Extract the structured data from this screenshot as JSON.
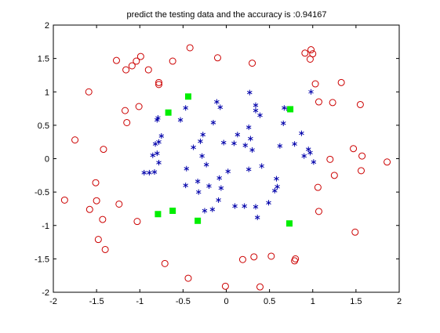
{
  "chart_data": {
    "type": "scatter",
    "title": "predict the testing data and the accuracy is :0.94167",
    "xlabel": "",
    "ylabel": "",
    "xlim": [
      -2,
      2
    ],
    "ylim": [
      -2,
      2
    ],
    "xticks": [
      -2,
      -1.5,
      -1,
      -0.5,
      0,
      0.5,
      1,
      1.5,
      2
    ],
    "yticks": [
      -2,
      -1.5,
      -1,
      -0.5,
      0,
      0.5,
      1,
      1.5,
      2
    ],
    "xtick_labels": [
      "-2",
      "-1.5",
      "-1",
      "-0.5",
      "0",
      "0.5",
      "1",
      "1.5",
      "2"
    ],
    "ytick_labels": [
      "-2",
      "-1.5",
      "-1",
      "-0.5",
      "0",
      "0.5",
      "1",
      "1.5",
      "2"
    ],
    "grid": false,
    "legend": "none",
    "series": [
      {
        "marker": "circle-open",
        "color": "#cc0000",
        "points": [
          [
            -1.87,
            -0.62
          ],
          [
            -1.75,
            0.28
          ],
          [
            -1.59,
            1.0
          ],
          [
            -1.58,
            -0.76
          ],
          [
            -1.51,
            -0.36
          ],
          [
            -1.5,
            -0.63
          ],
          [
            -1.48,
            -1.21
          ],
          [
            -1.43,
            -0.91
          ],
          [
            -1.42,
            0.14
          ],
          [
            -1.4,
            -1.36
          ],
          [
            -1.27,
            1.47
          ],
          [
            -1.24,
            -0.68
          ],
          [
            -1.17,
            0.72
          ],
          [
            -1.16,
            1.33
          ],
          [
            -1.15,
            0.54
          ],
          [
            -1.09,
            1.39
          ],
          [
            -1.04,
            1.46
          ],
          [
            -1.03,
            -0.94
          ],
          [
            -1.01,
            0.78
          ],
          [
            -0.99,
            1.53
          ],
          [
            -0.9,
            1.33
          ],
          [
            -0.78,
            1.14
          ],
          [
            -0.78,
            1.11
          ],
          [
            -0.71,
            -1.57
          ],
          [
            -0.62,
            1.46
          ],
          [
            -0.44,
            -1.79
          ],
          [
            -0.42,
            1.66
          ],
          [
            -0.1,
            1.51
          ],
          [
            -0.01,
            -1.91
          ],
          [
            0.19,
            -1.51
          ],
          [
            0.3,
            1.43
          ],
          [
            0.32,
            -1.47
          ],
          [
            0.39,
            -1.92
          ],
          [
            0.52,
            -1.46
          ],
          [
            0.79,
            -1.53
          ],
          [
            0.8,
            -1.5
          ],
          [
            0.91,
            1.58
          ],
          [
            0.97,
            1.49
          ],
          [
            0.98,
            1.63
          ],
          [
            1.0,
            1.57
          ],
          [
            1.03,
            1.12
          ],
          [
            1.06,
            -0.43
          ],
          [
            1.07,
            -0.79
          ],
          [
            1.07,
            0.85
          ],
          [
            1.2,
            -0.01
          ],
          [
            1.23,
            0.84
          ],
          [
            1.25,
            -0.25
          ],
          [
            1.33,
            1.14
          ],
          [
            1.47,
            0.15
          ],
          [
            1.49,
            -1.1
          ],
          [
            1.55,
            0.81
          ],
          [
            1.56,
            -0.18
          ],
          [
            1.57,
            0.04
          ],
          [
            1.86,
            -0.05
          ]
        ]
      },
      {
        "marker": "asterisk",
        "color": "#0000aa",
        "points": [
          [
            -0.95,
            -0.21
          ],
          [
            -0.89,
            -0.21
          ],
          [
            -0.85,
            0.05
          ],
          [
            -0.83,
            -0.2
          ],
          [
            -0.82,
            0.22
          ],
          [
            -0.8,
            0.08
          ],
          [
            -0.8,
            0.58
          ],
          [
            -0.79,
            0.61
          ],
          [
            -0.78,
            -0.06
          ],
          [
            -0.78,
            0.25
          ],
          [
            -0.75,
            0.34
          ],
          [
            -0.53,
            0.58
          ],
          [
            -0.47,
            0.76
          ],
          [
            -0.47,
            -0.4
          ],
          [
            -0.46,
            -0.15
          ],
          [
            -0.38,
            0.17
          ],
          [
            -0.33,
            -0.34
          ],
          [
            -0.32,
            -0.5
          ],
          [
            -0.3,
            0.26
          ],
          [
            -0.28,
            0.04
          ],
          [
            -0.27,
            0.36
          ],
          [
            -0.25,
            -0.78
          ],
          [
            -0.23,
            -0.09
          ],
          [
            -0.2,
            -0.41
          ],
          [
            -0.16,
            -0.76
          ],
          [
            -0.15,
            0.54
          ],
          [
            -0.11,
            0.85
          ],
          [
            -0.09,
            -0.62
          ],
          [
            -0.08,
            -0.29
          ],
          [
            -0.07,
            0.77
          ],
          [
            -0.06,
            -0.44
          ],
          [
            -0.03,
            0.24
          ],
          [
            0.02,
            -0.19
          ],
          [
            0.09,
            0.23
          ],
          [
            0.1,
            -0.71
          ],
          [
            0.13,
            0.36
          ],
          [
            0.21,
            -0.71
          ],
          [
            0.22,
            0.2
          ],
          [
            0.26,
            0.47
          ],
          [
            0.26,
            -0.16
          ],
          [
            0.27,
            0.99
          ],
          [
            0.28,
            0.3
          ],
          [
            0.3,
            0.13
          ],
          [
            0.34,
            0.72
          ],
          [
            0.34,
            0.8
          ],
          [
            0.34,
            -0.72
          ],
          [
            0.36,
            -0.88
          ],
          [
            0.39,
            0.65
          ],
          [
            0.41,
            -0.11
          ],
          [
            0.49,
            -0.66
          ],
          [
            0.56,
            -0.48
          ],
          [
            0.58,
            -0.3
          ],
          [
            0.59,
            -0.42
          ],
          [
            0.62,
            0.19
          ],
          [
            0.66,
            0.53
          ],
          [
            0.67,
            0.76
          ],
          [
            0.72,
            0.74
          ],
          [
            0.79,
            0.22
          ],
          [
            0.87,
            0.38
          ],
          [
            0.9,
            0.04
          ],
          [
            0.95,
            0.14
          ],
          [
            0.97,
            0.09
          ],
          [
            1.01,
            -0.05
          ],
          [
            0.98,
            1.0
          ]
        ]
      },
      {
        "marker": "filled-square",
        "color": "#00ee00",
        "points": [
          [
            -0.67,
            0.69
          ],
          [
            -0.44,
            0.93
          ],
          [
            -0.79,
            -0.83
          ],
          [
            -0.62,
            -0.78
          ],
          [
            -0.33,
            -0.93
          ],
          [
            0.74,
            0.74
          ],
          [
            0.73,
            -0.97
          ]
        ]
      }
    ]
  }
}
